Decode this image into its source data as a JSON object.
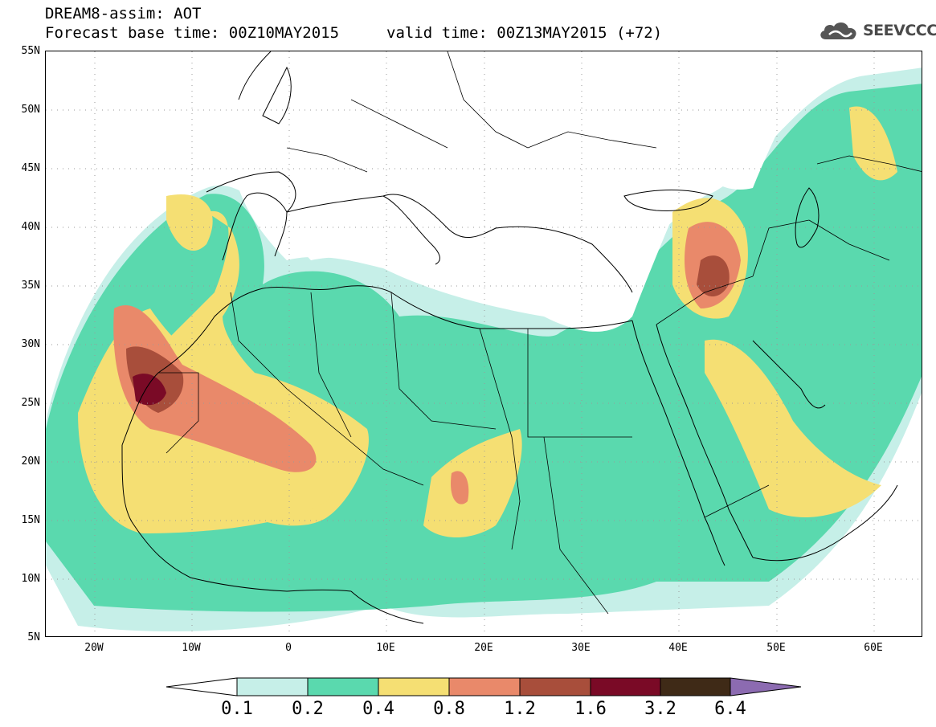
{
  "title": {
    "line1": "DREAM8-assim: AOT",
    "base": "Forecast base time: 00Z10MAY2015",
    "valid": "valid time: 00Z13MAY2015 (+72)"
  },
  "logo": {
    "text": "SEEVCCC",
    "icon": "cloud-icon"
  },
  "lat_labels": [
    "55N",
    "50N",
    "45N",
    "40N",
    "35N",
    "30N",
    "25N",
    "20N",
    "15N",
    "10N",
    "5N"
  ],
  "lon_labels": [
    "20W",
    "10W",
    "0",
    "10E",
    "20E",
    "30E",
    "40E",
    "50E",
    "60E"
  ],
  "colorbar": {
    "labels": [
      "0.1",
      "0.2",
      "0.4",
      "0.8",
      "1.2",
      "1.6",
      "3.2",
      "6.4"
    ],
    "colors": [
      "#ffffff",
      "#c6efe8",
      "#5ad9ae",
      "#f5df73",
      "#e9896a",
      "#a84e3b",
      "#7a0a26",
      "#3f2a17",
      "#8c6bb1"
    ]
  },
  "map": {
    "domain": {
      "lon": [
        -25,
        65
      ],
      "lat": [
        5,
        55
      ]
    },
    "field": "AOT"
  }
}
